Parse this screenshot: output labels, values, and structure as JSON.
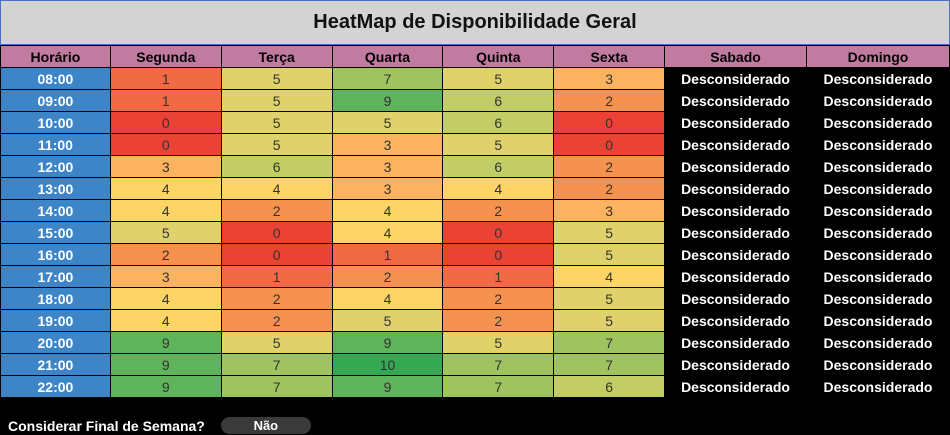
{
  "title": "HeatMap de Disponibilidade Geral",
  "columns": [
    "Horário",
    "Segunda",
    "Terça",
    "Quarta",
    "Quinta",
    "Sexta",
    "Sabado",
    "Domingo"
  ],
  "weekend_label": "Desconsiderado",
  "rows": [
    {
      "time": "08:00",
      "values": [
        1,
        5,
        7,
        5,
        3
      ]
    },
    {
      "time": "09:00",
      "values": [
        1,
        5,
        9,
        6,
        2
      ]
    },
    {
      "time": "10:00",
      "values": [
        0,
        5,
        5,
        6,
        0
      ]
    },
    {
      "time": "11:00",
      "values": [
        0,
        5,
        3,
        5,
        0
      ]
    },
    {
      "time": "12:00",
      "values": [
        3,
        6,
        3,
        6,
        2
      ]
    },
    {
      "time": "13:00",
      "values": [
        4,
        4,
        3,
        4,
        2
      ]
    },
    {
      "time": "14:00",
      "values": [
        4,
        2,
        4,
        2,
        3
      ]
    },
    {
      "time": "15:00",
      "values": [
        5,
        0,
        4,
        0,
        5
      ]
    },
    {
      "time": "16:00",
      "values": [
        2,
        0,
        1,
        0,
        5
      ]
    },
    {
      "time": "17:00",
      "values": [
        3,
        1,
        2,
        1,
        4
      ]
    },
    {
      "time": "18:00",
      "values": [
        4,
        2,
        4,
        2,
        5
      ]
    },
    {
      "time": "19:00",
      "values": [
        4,
        2,
        5,
        2,
        5
      ]
    },
    {
      "time": "20:00",
      "values": [
        9,
        5,
        9,
        5,
        7
      ]
    },
    {
      "time": "21:00",
      "values": [
        9,
        7,
        10,
        7,
        7
      ]
    },
    {
      "time": "22:00",
      "values": [
        9,
        7,
        9,
        7,
        6
      ]
    }
  ],
  "footer": {
    "label": "Considerar Final de Semana?",
    "toggle_value": "Não"
  },
  "colors": {
    "scale": {
      "0": "#ea4335",
      "1": "#f06a45",
      "2": "#f6924f",
      "3": "#fcb35f",
      "4": "#ffd466",
      "5": "#e0d26a",
      "6": "#c3cd66",
      "7": "#9fc45f",
      "9": "#5fb35a",
      "10": "#34a853"
    },
    "header": "#c27ba0",
    "time_column": "#3d85c6",
    "weekend": "#000000",
    "title_bar": "#d3d3d3"
  }
}
